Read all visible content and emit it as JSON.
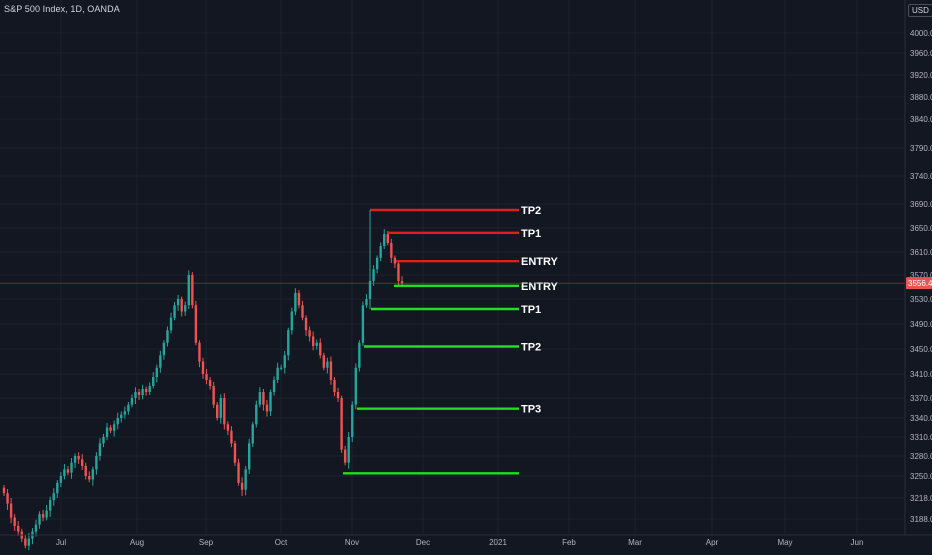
{
  "header": {
    "symbol_title": "S&P 500 Index, 1D, OANDA",
    "currency": "USD"
  },
  "colors": {
    "background": "#131722",
    "up": "#26a69a",
    "down": "#ef5350",
    "grid": "#1e222d",
    "axis_text": "#b2b5be",
    "sell_line": "#e01e1e",
    "buy_line": "#1ee01e",
    "label_text": "#ffffff"
  },
  "chart_data": {
    "type": "candlestick",
    "y_ticks": [
      3188.0,
      3218.0,
      3250.0,
      3280.0,
      3310.0,
      3340.0,
      3370.0,
      3410.0,
      3450.0,
      3490.0,
      3530.0,
      3570.0,
      3610.0,
      3650.0,
      3690.0,
      3740.0,
      3790.0,
      3840.0,
      3880.0,
      3920.0,
      3960.0,
      4000.0
    ],
    "y_tick_labels": [
      "3188.0",
      "3218.0",
      "3250.0",
      "3280.0",
      "3310.0",
      "3340.0",
      "3370.0",
      "3410.0",
      "3450.0",
      "3490.0",
      "3530.0",
      "3570.0",
      "3610.0",
      "3650.0",
      "3690.0",
      "3740.0",
      "3790.0",
      "3840.0",
      "3880.0",
      "3920.0",
      "3960.0",
      "4000.0"
    ],
    "x_labels": [
      {
        "label": "Jul",
        "date": "2020-07-01"
      },
      {
        "label": "Aug",
        "date": "2020-08-03"
      },
      {
        "label": "Sep",
        "date": "2020-09-01"
      },
      {
        "label": "Oct",
        "date": "2020-10-01"
      },
      {
        "label": "Nov",
        "date": "2020-11-02"
      },
      {
        "label": "Dec",
        "date": "2020-12-01"
      },
      {
        "label": "2021",
        "date": "2021-01-04"
      },
      {
        "label": "Feb",
        "date": "2021-02-01"
      },
      {
        "label": "Mar",
        "date": "2021-03-01"
      },
      {
        "label": "Apr",
        "date": "2021-04-01"
      },
      {
        "label": "May",
        "date": "2021-05-03"
      },
      {
        "label": "Jun",
        "date": "2021-06-01"
      }
    ],
    "current_price": 3556.4,
    "current_price_label": "3556.4",
    "closes": [
      3225,
      3210,
      3190,
      3178,
      3170,
      3160,
      3150,
      3160,
      3170,
      3180,
      3195,
      3190,
      3200,
      3215,
      3225,
      3240,
      3250,
      3260,
      3255,
      3270,
      3280,
      3275,
      3265,
      3250,
      3245,
      3260,
      3280,
      3300,
      3310,
      3325,
      3320,
      3330,
      3340,
      3345,
      3350,
      3360,
      3370,
      3380,
      3375,
      3385,
      3380,
      3390,
      3405,
      3420,
      3440,
      3460,
      3480,
      3500,
      3520,
      3530,
      3510,
      3520,
      3570,
      3520,
      3460,
      3430,
      3410,
      3400,
      3390,
      3360,
      3340,
      3370,
      3330,
      3320,
      3300,
      3270,
      3240,
      3230,
      3260,
      3300,
      3330,
      3360,
      3380,
      3360,
      3350,
      3380,
      3400,
      3420,
      3420,
      3440,
      3480,
      3510,
      3540,
      3520,
      3500,
      3480,
      3470,
      3455,
      3460,
      3440,
      3420,
      3430,
      3400,
      3380,
      3370,
      3290,
      3270,
      3310,
      3360,
      3420,
      3460,
      3520,
      3530,
      3560,
      3580,
      3600,
      3620,
      3640,
      3625,
      3600,
      3590,
      3560,
      3556
    ]
  },
  "annotations": {
    "sell": [
      {
        "label": "TP2",
        "price": 3680
      },
      {
        "label": "TP1",
        "price": 3642
      },
      {
        "label": "ENTRY",
        "price": 3594
      }
    ],
    "buy": [
      {
        "label": "ENTRY",
        "price": 3552
      },
      {
        "label": "TP1",
        "price": 3514
      },
      {
        "label": "TP2",
        "price": 3454
      },
      {
        "label": "TP3",
        "price": 3354
      },
      {
        "label": "",
        "price": 3254
      }
    ]
  }
}
